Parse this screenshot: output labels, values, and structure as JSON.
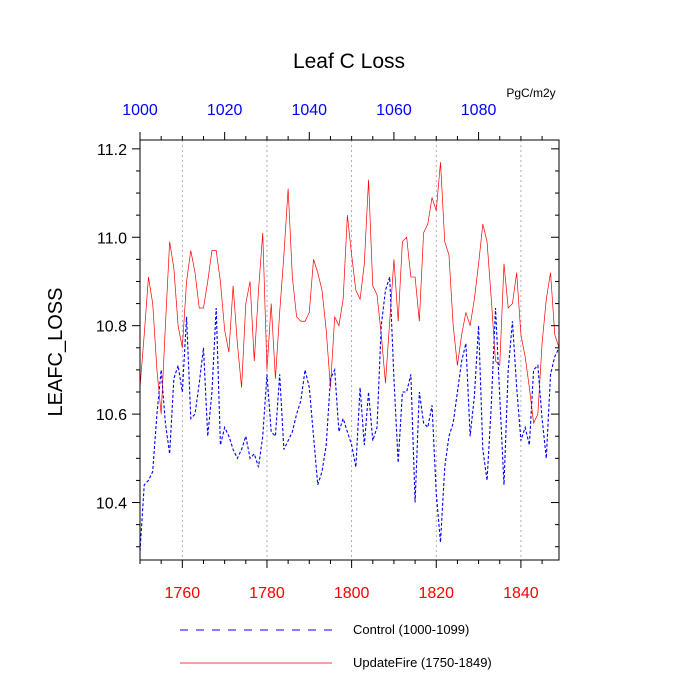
{
  "chart_data": {
    "type": "line",
    "title": "Leaf C Loss",
    "units_label": "PgC/m2y",
    "ylabel": "LEAFC_LOSS",
    "ylim": [
      10.27,
      11.22
    ],
    "y_ticks": [
      10.4,
      10.6,
      10.8,
      11.0,
      11.2
    ],
    "y_tick_labels": [
      "10.4",
      "10.6",
      "10.8",
      "11.0",
      "11.2"
    ],
    "y_minor_step": 0.05,
    "x_bottom": {
      "range": [
        1750,
        1849
      ],
      "ticks": [
        1760,
        1780,
        1800,
        1820,
        1840
      ],
      "tick_labels": [
        "1760",
        "1780",
        "1800",
        "1820",
        "1840"
      ],
      "minor_step": 5,
      "color": "#ff0000"
    },
    "x_top": {
      "range": [
        1000,
        1099
      ],
      "ticks": [
        1000,
        1020,
        1040,
        1060,
        1080
      ],
      "tick_labels": [
        "1000",
        "1020",
        "1040",
        "1060",
        "1080"
      ],
      "minor_step": 5,
      "color": "#0000ff"
    },
    "grid_x": [
      1760,
      1780,
      1800,
      1820,
      1840
    ],
    "series": [
      {
        "name": "UpdateFire (1750-1849)",
        "color": "#ff0000",
        "dash": "solid",
        "x_start": 1750,
        "values": [
          10.66,
          10.78,
          10.91,
          10.85,
          10.7,
          10.6,
          10.8,
          10.99,
          10.93,
          10.8,
          10.75,
          10.9,
          10.97,
          10.92,
          10.84,
          10.84,
          10.9,
          10.97,
          10.97,
          10.9,
          10.79,
          10.74,
          10.89,
          10.76,
          10.66,
          10.85,
          10.9,
          10.72,
          10.88,
          11.01,
          10.7,
          10.85,
          10.68,
          10.83,
          10.96,
          11.11,
          10.91,
          10.82,
          10.81,
          10.81,
          10.83,
          10.95,
          10.92,
          10.88,
          10.79,
          10.66,
          10.82,
          10.8,
          10.86,
          11.05,
          10.96,
          10.88,
          10.86,
          10.94,
          11.13,
          10.89,
          10.87,
          10.78,
          10.67,
          10.81,
          10.95,
          10.81,
          10.99,
          11.0,
          10.91,
          10.91,
          10.81,
          11.01,
          11.03,
          11.09,
          11.06,
          11.17,
          10.99,
          10.96,
          10.8,
          10.71,
          10.78,
          10.83,
          10.8,
          10.86,
          10.94,
          11.03,
          10.99,
          10.86,
          10.72,
          10.71,
          10.94,
          10.84,
          10.85,
          10.92,
          10.78,
          10.73,
          10.66,
          10.58,
          10.6,
          10.76,
          10.86,
          10.92,
          10.78,
          10.75
        ]
      },
      {
        "name": "Control (1000-1099)",
        "color": "#0000ff",
        "dash": "dashed",
        "x_start": 1000,
        "values": [
          10.29,
          10.44,
          10.45,
          10.47,
          10.6,
          10.7,
          10.58,
          10.51,
          10.68,
          10.71,
          10.65,
          10.82,
          10.59,
          10.6,
          10.67,
          10.75,
          10.55,
          10.65,
          10.84,
          10.53,
          10.57,
          10.55,
          10.52,
          10.5,
          10.52,
          10.55,
          10.5,
          10.51,
          10.48,
          10.55,
          10.69,
          10.56,
          10.55,
          10.69,
          10.52,
          10.54,
          10.56,
          10.6,
          10.63,
          10.7,
          10.66,
          10.55,
          10.44,
          10.47,
          10.53,
          10.68,
          10.7,
          10.56,
          10.59,
          10.56,
          10.53,
          10.48,
          10.66,
          10.53,
          10.65,
          10.54,
          10.57,
          10.8,
          10.88,
          10.91,
          10.68,
          10.49,
          10.65,
          10.65,
          10.69,
          10.4,
          10.65,
          10.58,
          10.57,
          10.62,
          10.42,
          10.31,
          10.48,
          10.55,
          10.58,
          10.65,
          10.72,
          10.76,
          10.55,
          10.64,
          10.8,
          10.52,
          10.45,
          10.62,
          10.84,
          10.64,
          10.44,
          10.7,
          10.81,
          10.66,
          10.54,
          10.57,
          10.53,
          10.7,
          10.71,
          10.59,
          10.5,
          10.69,
          10.73,
          10.75
        ]
      }
    ],
    "legend": {
      "placement": "bottom",
      "entries": [
        {
          "label": "Control (1000-1099)",
          "color": "#0000ff",
          "dash": "dashed"
        },
        {
          "label": "UpdateFire (1750-1849)",
          "color": "#ff0000",
          "dash": "solid"
        }
      ]
    }
  }
}
